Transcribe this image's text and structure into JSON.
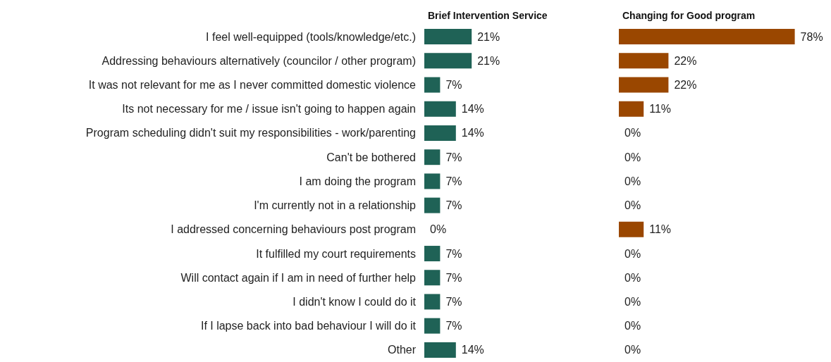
{
  "chart_data": [
    {
      "type": "bar",
      "orientation": "horizontal",
      "title": "Brief Intervention Service",
      "tick_labels": "y",
      "categories": [
        "I feel well-equipped (tools/knowledge/etc.)",
        "Addressing behaviours alternatively (councilor / other program)",
        "It was not relevant for me as I never committed domestic violence",
        "Its not necessary for me / issue isn't going to happen again",
        "Program scheduling didn't suit my responsibilities - work/parenting",
        "Can't be bothered",
        "I am doing the program",
        "I'm currently not in a relationship",
        "I addressed concerning behaviours post program",
        "It fulfilled my court requirements",
        "Will contact again if I am in need of further help",
        "I didn't know I could do it",
        "If I lapse back into bad behaviour I will do it",
        "Other"
      ],
      "series": [
        {
          "color": "#1f6256",
          "values": [
            21,
            21,
            7,
            14,
            14,
            7,
            7,
            7,
            0,
            7,
            7,
            7,
            7,
            14
          ],
          "value_labels": [
            "21%",
            "21%",
            "7%",
            "14%",
            "14%",
            "7%",
            "7%",
            "7%",
            "0%",
            "7%",
            "7%",
            "7%",
            "7%",
            "14%"
          ]
        }
      ]
    },
    {
      "type": "bar",
      "orientation": "horizontal",
      "title": "Changing for Good program",
      "tick_labels": false,
      "categories": [
        null,
        null,
        null,
        null,
        null,
        null,
        null,
        null,
        null,
        null,
        null,
        null,
        null,
        null
      ],
      "series": [
        {
          "color": "#9a4700",
          "values": [
            78,
            22,
            22,
            11,
            0,
            0,
            0,
            0,
            11,
            0,
            0,
            0,
            0,
            0
          ],
          "value_labels": [
            "78%",
            "22%",
            "22%",
            "11%",
            "0%",
            "0%",
            "0%",
            "0%",
            "11%",
            "0%",
            "0%",
            "0%",
            "0%",
            "0%"
          ]
        }
      ]
    }
  ]
}
